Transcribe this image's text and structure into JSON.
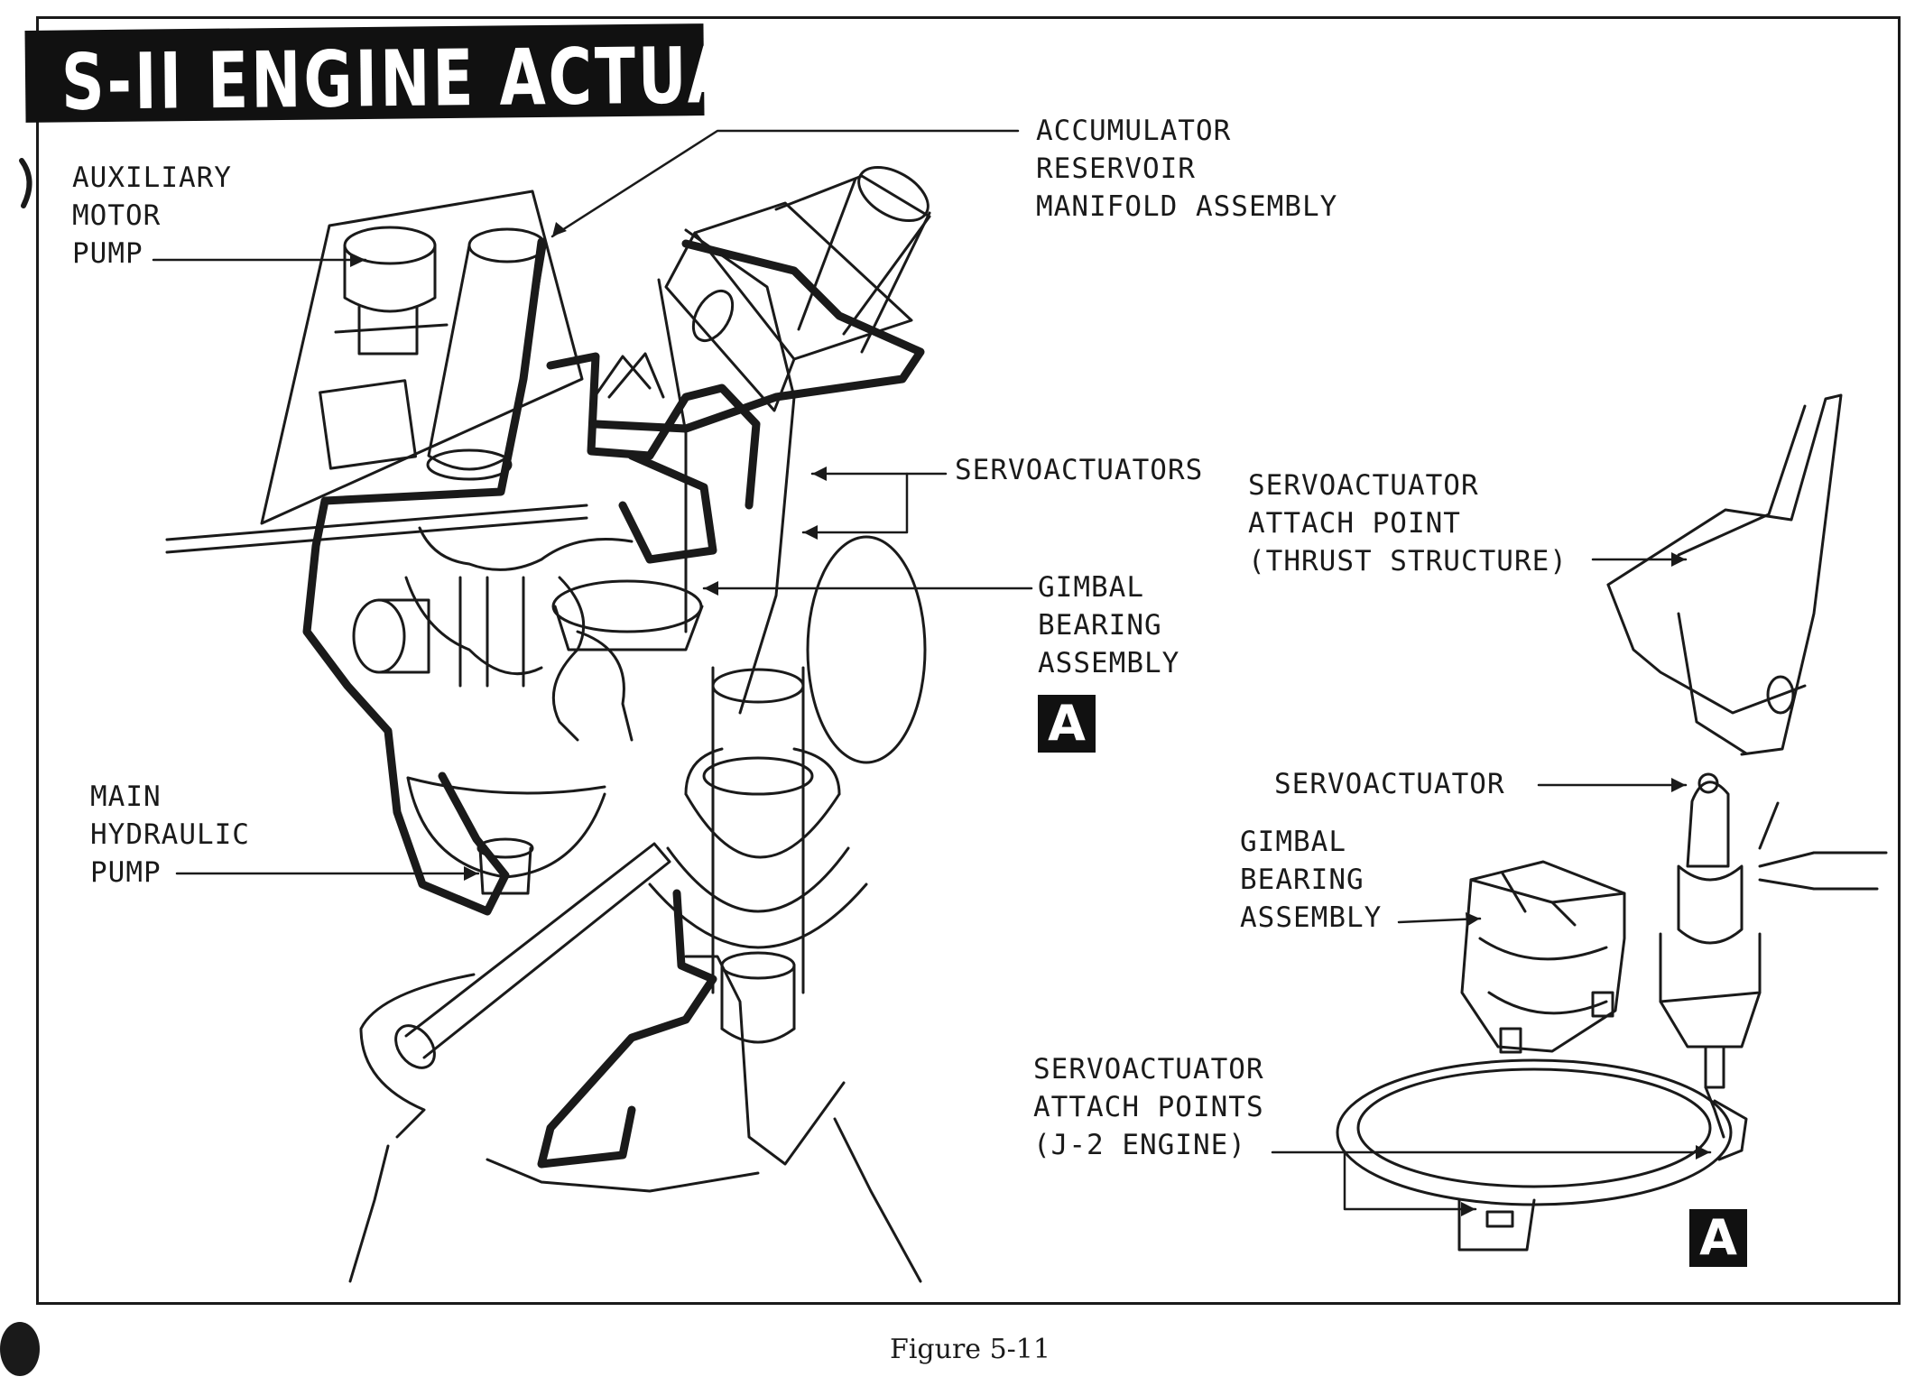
{
  "title": "S-II ENGINE ACTUATION",
  "labels": {
    "auxiliary_motor_pump": "AUXILIARY\nMOTOR\nPUMP",
    "accumulator_reservoir": "ACCUMULATOR\nRESERVOIR\nMANIFOLD ASSEMBLY",
    "servoactuators": "SERVOACTUATORS",
    "servoactuator_attach_thrust": "SERVOACTUATOR\nATTACH POINT\n(THRUST STRUCTURE)",
    "gimbal_bearing_main": "GIMBAL\nBEARING\nASSEMBLY",
    "main_hydraulic_pump": "MAIN\nHYDRAULIC\nPUMP",
    "servoactuator": "SERVOACTUATOR",
    "gimbal_bearing_detail": "GIMBAL\nBEARING\nASSEMBLY",
    "servoactuator_attach_j2": "SERVOACTUATOR\nATTACH POINTS\n(J-2 ENGINE)"
  },
  "detail_marker": "A",
  "detail_marker_callout": "A",
  "caption": "Figure 5-11",
  "colors": {
    "ink": "#1a1a1a",
    "paper": "#ffffff",
    "title_bg": "#111111"
  }
}
